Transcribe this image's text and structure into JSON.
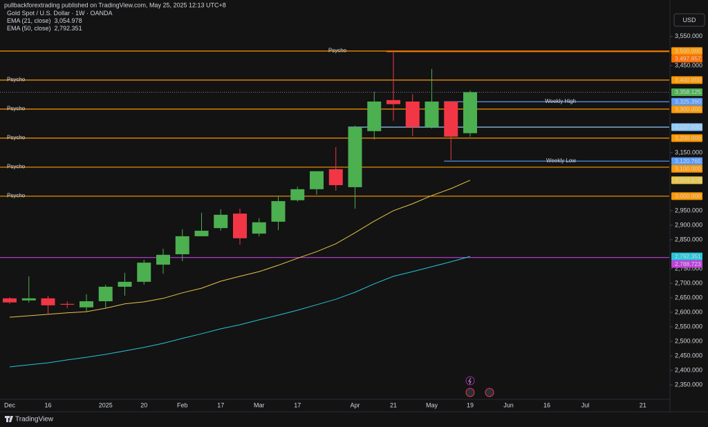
{
  "header": {
    "publisher": "pullbackforextrading published on TradingView.com, May 25, 2025 12:13 UTC+8"
  },
  "footer": {
    "brand": "TradingView"
  },
  "chart_data": {
    "type": "candlestick",
    "title": "Gold Spot / U.S. Dollar · 1W · OANDA",
    "currency": "USD",
    "up_color": "#4caf50",
    "down_color": "#f23645",
    "categories": [
      "Dec",
      null,
      "16",
      null,
      null,
      "2025",
      null,
      "20",
      null,
      "Feb",
      null,
      "17",
      null,
      "Mar",
      null,
      "17",
      null,
      null,
      "Apr",
      null,
      "21",
      null,
      "May",
      null,
      "19",
      null,
      "Jun",
      null,
      "16",
      null,
      "Jul",
      null,
      null,
      "21",
      null
    ],
    "open": [
      2648,
      2641,
      2648,
      2629,
      2617,
      2638,
      2688,
      2705,
      2764,
      2800,
      2862,
      2890,
      2940,
      2871,
      2912,
      2986,
      3024,
      3093,
      3031,
      3224,
      3331,
      3326,
      3238,
      3326,
      3217,
      null,
      null,
      null,
      null,
      null,
      null,
      null,
      null,
      null,
      null
    ],
    "high": [
      2652,
      2724,
      2657,
      2638,
      2662,
      2695,
      2736,
      2781,
      2819,
      2886,
      2943,
      2955,
      2957,
      2924,
      3002,
      3033,
      3086,
      3169,
      3243,
      3360,
      3500,
      3352,
      3438,
      3326,
      3364,
      null,
      null,
      null,
      null,
      null,
      null,
      null,
      null,
      null,
      null
    ],
    "low": [
      2629,
      2633,
      2593,
      2614,
      2600,
      2614,
      2657,
      2695,
      2733,
      2776,
      2862,
      2881,
      2833,
      2862,
      2883,
      2981,
      3005,
      3019,
      2957,
      3195,
      3260,
      3207,
      3233,
      3124,
      3205,
      null,
      null,
      null,
      null,
      null,
      null,
      null,
      null,
      null,
      null
    ],
    "close": [
      2634,
      2648,
      2624,
      2626,
      2638,
      2688,
      2705,
      2771,
      2798,
      2862,
      2881,
      2936,
      2855,
      2910,
      2983,
      3024,
      3086,
      3038,
      3238,
      3326,
      3317,
      3238,
      3326,
      3205,
      3358.125,
      null,
      null,
      null,
      null,
      null,
      null,
      null,
      null,
      null,
      null
    ],
    "indicators": [
      {
        "name": "EMA (21, close)",
        "value_label": "3,054.978",
        "color": "#e8c547",
        "values": [
          2583,
          2588,
          2593,
          2598,
          2602,
          2614,
          2629,
          2636,
          2648,
          2667,
          2683,
          2707,
          2724,
          2740,
          2762,
          2786,
          2809,
          2836,
          2874,
          2914,
          2950,
          2974,
          3002,
          3026,
          3054.978,
          null,
          null,
          null,
          null,
          null,
          null,
          null,
          null,
          null,
          null
        ]
      },
      {
        "name": "EMA (50, close)",
        "value_label": "2,792.351",
        "color": "#26c6da",
        "values": [
          2412,
          2419,
          2426,
          2436,
          2445,
          2455,
          2467,
          2479,
          2493,
          2510,
          2526,
          2543,
          2557,
          2574,
          2590,
          2607,
          2626,
          2645,
          2669,
          2698,
          2724,
          2740,
          2757,
          2774,
          2792.351,
          null,
          null,
          null,
          null,
          null,
          null,
          null,
          null,
          null,
          null
        ]
      }
    ],
    "lines": [
      {
        "value": 3500,
        "badge": "3,500.000",
        "color": "#ff9800",
        "text": "Psycho",
        "text_at": "center",
        "text_color": "#4fc3f7"
      },
      {
        "value": 3497.857,
        "badge": "3,497.857",
        "color": "#ff6d00",
        "from": 20
      },
      {
        "value": 3400,
        "badge": "3,400.000",
        "color": "#ff9800",
        "text": "Psycho",
        "text_at": "left",
        "text_color": "#4fc3f7"
      },
      {
        "value": 3358.125,
        "badge": "3,358.125",
        "color": "#4caf50",
        "style": "dotted"
      },
      {
        "value": 3325.39,
        "badge": "3,325.390",
        "color": "#5b9cf6",
        "from": 23,
        "text": "Weekly High",
        "text_at": "right",
        "text_color": "#4fc3f7"
      },
      {
        "value": 3300,
        "badge": "3,300.000",
        "color": "#ff9800",
        "text": "Psycho",
        "text_at": "left",
        "text_color": "#4fc3f7"
      },
      {
        "value": 3237.93,
        "badge": "3,237.930",
        "color": "#90caf9",
        "from": 18
      },
      {
        "value": 3200,
        "badge": "3,200.000",
        "color": "#ff9800",
        "text": "Psycho",
        "text_at": "left",
        "text_color": "#4fc3f7"
      },
      {
        "value": 3120.765,
        "badge": "3,120.765",
        "color": "#5b9cf6",
        "from": 23,
        "text": "Weekly Low",
        "text_at": "right",
        "text_color": "#4fc3f7"
      },
      {
        "value": 3100,
        "badge": "3,100.000",
        "color": "#ff9800",
        "text": "Psycho",
        "text_at": "left",
        "text_color": "#4fc3f7"
      },
      {
        "value": 3000,
        "badge": "3,000.000",
        "color": "#ff9800",
        "text": "Psycho",
        "text_at": "left",
        "text_color": "#4fc3f7"
      },
      {
        "value": 2788.723,
        "badge": "2,788.723",
        "color": "#c040d8"
      }
    ],
    "ylim": [
      2300,
      3633
    ],
    "yticks": [
      {
        "value": 3550,
        "label": "3,550.000"
      },
      {
        "value": 3450,
        "label": "3,450.000"
      },
      {
        "value": 3150,
        "label": "3,150.000"
      },
      {
        "value": 2950,
        "label": "2,950.000"
      },
      {
        "value": 2900,
        "label": "2,900.000"
      },
      {
        "value": 2850,
        "label": "2,850.000"
      },
      {
        "value": 2750,
        "label": "2,750.000"
      },
      {
        "value": 2700,
        "label": "2,700.000"
      },
      {
        "value": 2650,
        "label": "2,650.000"
      },
      {
        "value": 2600,
        "label": "2,600.000"
      },
      {
        "value": 2550,
        "label": "2,550.000"
      },
      {
        "value": 2500,
        "label": "2,500.000"
      },
      {
        "value": 2450,
        "label": "2,450.000"
      },
      {
        "value": 2400,
        "label": "2,400.000"
      },
      {
        "value": 2350,
        "label": "2,350.000"
      }
    ]
  }
}
